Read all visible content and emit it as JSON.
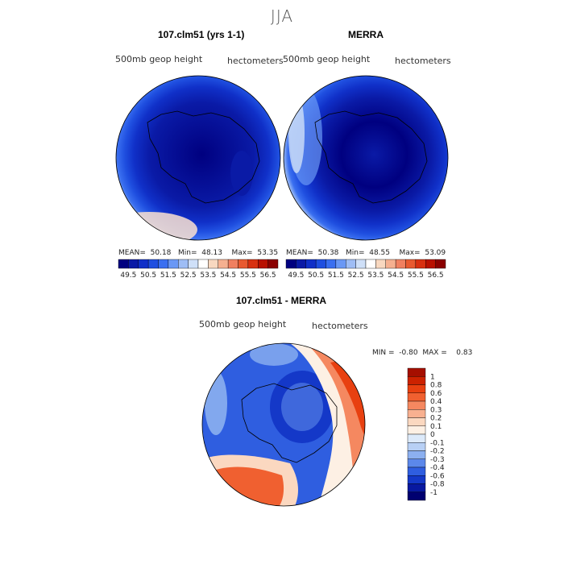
{
  "season_title": "JJA",
  "panels": [
    {
      "title": "107.clm51 (yrs 1-1)",
      "variable": "500mb geop height",
      "units": "hectometers",
      "stats": {
        "mean_label": "MEAN=",
        "mean": "50.18",
        "min_label": "Min=",
        "min": "48.13",
        "max_label": "Max=",
        "max": "53.35"
      }
    },
    {
      "title": "MERRA",
      "variable": "500mb geop height",
      "units": "hectometers",
      "stats": {
        "mean_label": "MEAN=",
        "mean": "50.38",
        "min_label": "Min=",
        "min": "48.55",
        "max_label": "Max=",
        "max": "53.09"
      }
    }
  ],
  "diff_panel": {
    "title": "107.clm51 - MERRA",
    "variable": "500mb geop height",
    "units": "hectometers",
    "stats": {
      "min_label": "MIN =",
      "min": "-0.80",
      "max_label": "MAX =",
      "max": "0.83"
    }
  },
  "colorbar_main": {
    "labels": [
      "49.5",
      "50.5",
      "51.5",
      "52.5",
      "53.5",
      "54.5",
      "55.5",
      "56.5"
    ],
    "colors": [
      "#000080",
      "#0a1aa6",
      "#1030c8",
      "#1f4fe0",
      "#3a6ff0",
      "#6a98f5",
      "#9ebdf5",
      "#cfe0f8",
      "#ffffff",
      "#f8d8c0",
      "#f5b090",
      "#f08060",
      "#e85a30",
      "#d83010",
      "#b81000",
      "#8a0000"
    ]
  },
  "colorbar_diff": {
    "labels": [
      "1",
      "0.8",
      "0.6",
      "0.4",
      "0.3",
      "0.2",
      "0.1",
      "0",
      "-0.1",
      "-0.2",
      "-0.3",
      "-0.4",
      "-0.6",
      "-0.8",
      "-1"
    ],
    "colors": [
      "#a50f00",
      "#cc2200",
      "#e84010",
      "#f06030",
      "#f58860",
      "#f8b090",
      "#fbd8c0",
      "#fdf0e4",
      "#ddeafa",
      "#b8d0f5",
      "#8cb0f0",
      "#5c88ea",
      "#2f5ee0",
      "#1438c8",
      "#0818a0",
      "#000070"
    ]
  }
}
